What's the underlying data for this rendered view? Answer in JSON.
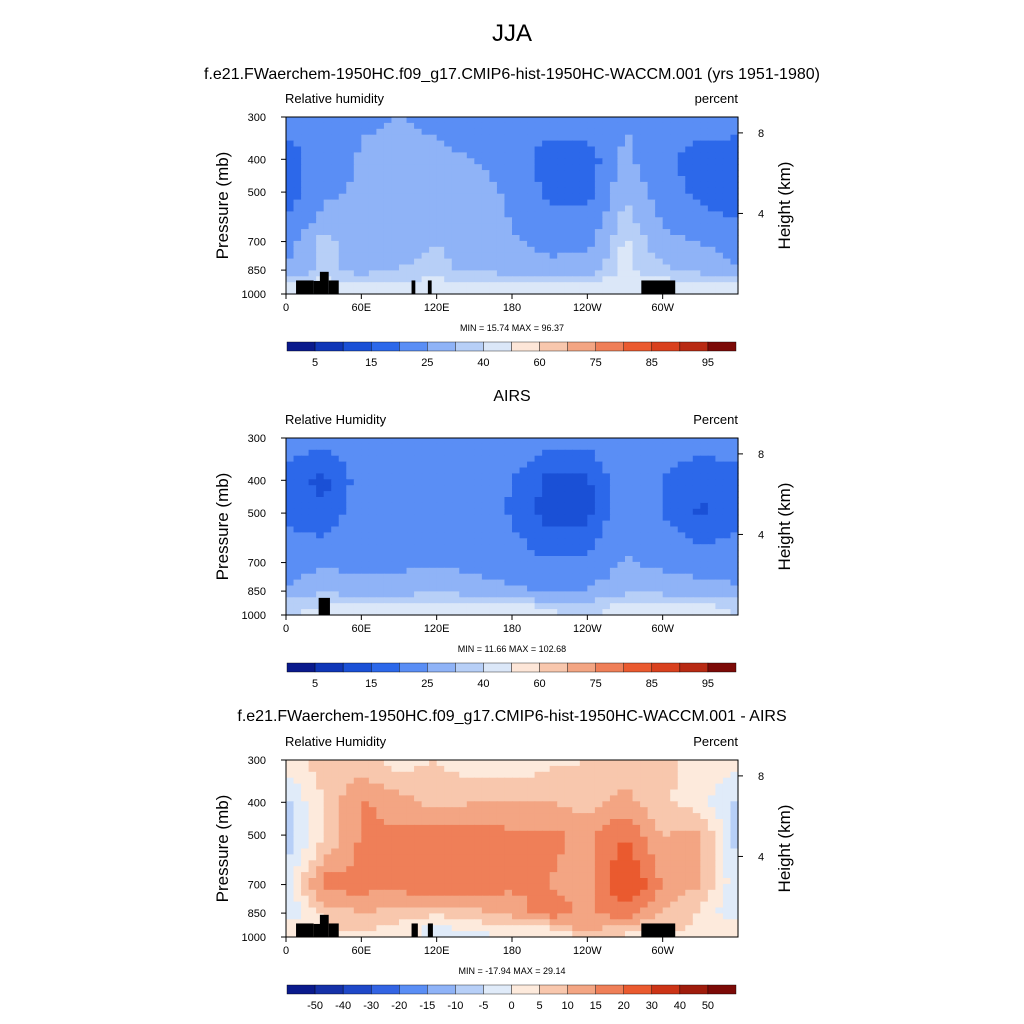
{
  "figure": {
    "title": "JJA",
    "colors": {
      "rh_scale": [
        "#0a1a8c",
        "#0f36b7",
        "#1a50d6",
        "#2c68ea",
        "#5a8ef5",
        "#8fb3f7",
        "#b7cff7",
        "#dbe7f8",
        "#fde6d8",
        "#f8c7ad",
        "#f3a583",
        "#ef7f58",
        "#ea5a2f",
        "#d9411e",
        "#b82a13",
        "#7c0a07"
      ],
      "land_mask": "#000000"
    }
  },
  "chart_data": [
    {
      "type": "heatmap",
      "title": "f.e21.FWaerchem-1950HC.f09_g17.CMIP6-hist-1950HC-WACCM.001 (yrs 1951-1980)",
      "left_label": "Relative humidity",
      "right_label": "percent",
      "ylabel": "Pressure (mb)",
      "ylabel_right": "Height (km)",
      "x_ticks": [
        "0",
        "60E",
        "120E",
        "180",
        "120W",
        "60W"
      ],
      "x_tick_lon": [
        0,
        60,
        120,
        180,
        240,
        300
      ],
      "xlim": [
        0,
        360
      ],
      "y_ticks": [
        "300",
        "400",
        "500",
        "700",
        "850",
        "1000"
      ],
      "y_tick_p": [
        300,
        400,
        500,
        700,
        850,
        1000
      ],
      "ylim": [
        1000,
        300
      ],
      "y_ticks_right": [
        "8",
        "4"
      ],
      "y_tick_right_km": [
        8,
        4
      ],
      "stats_text": "MIN =  15.74  MAX =  96.37",
      "min": 15.74,
      "max": 96.37,
      "colorbar_labels": [
        "5",
        "15",
        "25",
        "40",
        "60",
        "75",
        "85",
        "95"
      ],
      "levels_rh": [
        5,
        15,
        25,
        40,
        60,
        75,
        85,
        95
      ],
      "field": {
        "lon": [
          0,
          30,
          60,
          90,
          120,
          150,
          180,
          210,
          240,
          270,
          300,
          330,
          360
        ],
        "p": [
          300,
          400,
          500,
          700,
          850,
          950,
          1000
        ],
        "values": [
          [
            48,
            52,
            58,
            60,
            58,
            55,
            53,
            50,
            52,
            58,
            55,
            50,
            48
          ],
          [
            30,
            50,
            62,
            65,
            62,
            60,
            50,
            30,
            28,
            65,
            45,
            30,
            30
          ],
          [
            28,
            55,
            63,
            70,
            72,
            70,
            56,
            36,
            34,
            75,
            50,
            34,
            28
          ],
          [
            52,
            80,
            68,
            70,
            75,
            68,
            62,
            55,
            55,
            88,
            65,
            60,
            52
          ],
          [
            62,
            78,
            70,
            76,
            78,
            72,
            70,
            65,
            68,
            88,
            78,
            70,
            62
          ],
          [
            92,
            93,
            90,
            91,
            92,
            92,
            94,
            90,
            94,
            93,
            92,
            94,
            92
          ],
          [
            90,
            90,
            88,
            90,
            88,
            88,
            90,
            88,
            88,
            90,
            88,
            90,
            90
          ]
        ]
      },
      "land": [
        {
          "lon0": 8,
          "lon1": 22,
          "p0": 1000,
          "p1": 912
        },
        {
          "lon0": 22,
          "lon1": 30,
          "p0": 1000,
          "p1": 915
        },
        {
          "lon0": 27,
          "lon1": 34,
          "p0": 1000,
          "p1": 860
        },
        {
          "lon0": 34,
          "lon1": 42,
          "p0": 1000,
          "p1": 912
        },
        {
          "lon0": 100,
          "lon1": 103,
          "p0": 1000,
          "p1": 912
        },
        {
          "lon0": 113,
          "lon1": 116,
          "p0": 1000,
          "p1": 912
        },
        {
          "lon0": 283,
          "lon1": 310,
          "p0": 1000,
          "p1": 912
        }
      ]
    },
    {
      "type": "heatmap",
      "title": "AIRS",
      "left_label": "Relative Humidity",
      "right_label": "Percent",
      "ylabel": "Pressure (mb)",
      "ylabel_right": "Height (km)",
      "x_ticks": [
        "0",
        "60E",
        "120E",
        "180",
        "120W",
        "60W"
      ],
      "x_tick_lon": [
        0,
        60,
        120,
        180,
        240,
        300
      ],
      "xlim": [
        0,
        360
      ],
      "y_ticks": [
        "300",
        "400",
        "500",
        "700",
        "850",
        "1000"
      ],
      "y_tick_p": [
        300,
        400,
        500,
        700,
        850,
        1000
      ],
      "ylim": [
        1000,
        300
      ],
      "y_ticks_right": [
        "8",
        "4"
      ],
      "y_tick_right_km": [
        8,
        4
      ],
      "stats_text": "MIN =  11.66  MAX = 102.68",
      "min": 11.66,
      "max": 102.68,
      "colorbar_labels": [
        "5",
        "15",
        "25",
        "40",
        "60",
        "75",
        "85",
        "95"
      ],
      "levels_rh": [
        5,
        15,
        25,
        40,
        60,
        75,
        85,
        95
      ],
      "field": {
        "lon": [
          0,
          30,
          60,
          90,
          120,
          150,
          180,
          210,
          240,
          270,
          300,
          330,
          360
        ],
        "p": [
          300,
          400,
          500,
          700,
          850,
          950,
          1000
        ],
        "values": [
          [
            48,
            45,
            52,
            58,
            55,
            55,
            52,
            46,
            46,
            52,
            48,
            48,
            48
          ],
          [
            35,
            20,
            48,
            55,
            55,
            50,
            40,
            20,
            22,
            55,
            40,
            28,
            35
          ],
          [
            38,
            28,
            50,
            55,
            55,
            50,
            38,
            18,
            20,
            55,
            40,
            22,
            38
          ],
          [
            48,
            56,
            55,
            56,
            57,
            55,
            50,
            42,
            45,
            62,
            55,
            52,
            48
          ],
          [
            64,
            75,
            68,
            70,
            74,
            68,
            64,
            58,
            62,
            72,
            72,
            68,
            64
          ],
          [
            84,
            86,
            88,
            90,
            93,
            94,
            90,
            86,
            84,
            88,
            88,
            88,
            84
          ],
          [
            85,
            85,
            86,
            86,
            90,
            90,
            86,
            85,
            84,
            86,
            86,
            86,
            85
          ]
        ]
      },
      "land": [
        {
          "lon0": 26,
          "lon1": 35,
          "p0": 1000,
          "p1": 890
        }
      ]
    },
    {
      "type": "heatmap",
      "title": "f.e21.FWaerchem-1950HC.f09_g17.CMIP6-hist-1950HC-WACCM.001 - AIRS",
      "left_label": "Relative Humidity",
      "right_label": "Percent",
      "ylabel": "Pressure (mb)",
      "ylabel_right": "Height (km)",
      "x_ticks": [
        "0",
        "60E",
        "120E",
        "180",
        "120W",
        "60W"
      ],
      "x_tick_lon": [
        0,
        60,
        120,
        180,
        240,
        300
      ],
      "xlim": [
        0,
        360
      ],
      "y_ticks": [
        "300",
        "400",
        "500",
        "700",
        "850",
        "1000"
      ],
      "y_tick_p": [
        300,
        400,
        500,
        700,
        850,
        1000
      ],
      "ylim": [
        1000,
        300
      ],
      "y_ticks_right": [
        "8",
        "4"
      ],
      "y_tick_right_km": [
        8,
        4
      ],
      "stats_text": "MIN = -17.94  MAX =  29.14",
      "min": -17.94,
      "max": 29.14,
      "colorbar_labels": [
        "-50",
        "-40",
        "-30",
        "-20",
        "-15",
        "-10",
        "-5",
        "0",
        "5",
        "10",
        "15",
        "20",
        "30",
        "40",
        "50"
      ],
      "levels_diff": [
        -50,
        -40,
        -30,
        -20,
        -15,
        -10,
        -5,
        0,
        5,
        10,
        15,
        20,
        30,
        40,
        50
      ],
      "field": {
        "lon": [
          0,
          30,
          60,
          90,
          120,
          150,
          180,
          210,
          240,
          270,
          300,
          330,
          360
        ],
        "p": [
          300,
          400,
          500,
          700,
          850,
          950,
          1000
        ],
        "values": [
          [
            2,
            8,
            6,
            3,
            5,
            2,
            1,
            4,
            5,
            6,
            7,
            2,
            2
          ],
          [
            -6,
            5,
            16,
            12,
            8,
            10,
            10,
            10,
            8,
            12,
            6,
            2,
            -6
          ],
          [
            -8,
            4,
            16,
            16,
            18,
            18,
            16,
            16,
            14,
            20,
            10,
            12,
            -8
          ],
          [
            -4,
            18,
            17,
            17,
            20,
            18,
            16,
            15,
            12,
            26,
            15,
            10,
            -4
          ],
          [
            -6,
            6,
            10,
            8,
            6,
            8,
            12,
            18,
            14,
            18,
            10,
            4,
            -6
          ],
          [
            6,
            4,
            6,
            2,
            -2,
            2,
            2,
            4,
            12,
            6,
            6,
            4,
            6
          ],
          [
            4,
            4,
            2,
            2,
            -1,
            -4,
            2,
            2,
            4,
            4,
            2,
            2,
            4
          ]
        ]
      },
      "land": [
        {
          "lon0": 8,
          "lon1": 22,
          "p0": 1000,
          "p1": 912
        },
        {
          "lon0": 22,
          "lon1": 30,
          "p0": 1000,
          "p1": 915
        },
        {
          "lon0": 27,
          "lon1": 34,
          "p0": 1000,
          "p1": 860
        },
        {
          "lon0": 34,
          "lon1": 42,
          "p0": 1000,
          "p1": 912
        },
        {
          "lon0": 100,
          "lon1": 105,
          "p0": 1000,
          "p1": 912
        },
        {
          "lon0": 113,
          "lon1": 117,
          "p0": 1000,
          "p1": 912
        },
        {
          "lon0": 283,
          "lon1": 310,
          "p0": 1000,
          "p1": 912
        }
      ],
      "colors_diff": [
        "#0a1a8c",
        "#1531a8",
        "#1f48c8",
        "#3364e3",
        "#5a8ef5",
        "#8fb3f7",
        "#b7cff7",
        "#e0ebf9",
        "#fdeadc",
        "#f8c7ad",
        "#f3a583",
        "#ef7f58",
        "#ea5a2f",
        "#cc3416",
        "#9f1c0c",
        "#7c0a07"
      ]
    }
  ]
}
